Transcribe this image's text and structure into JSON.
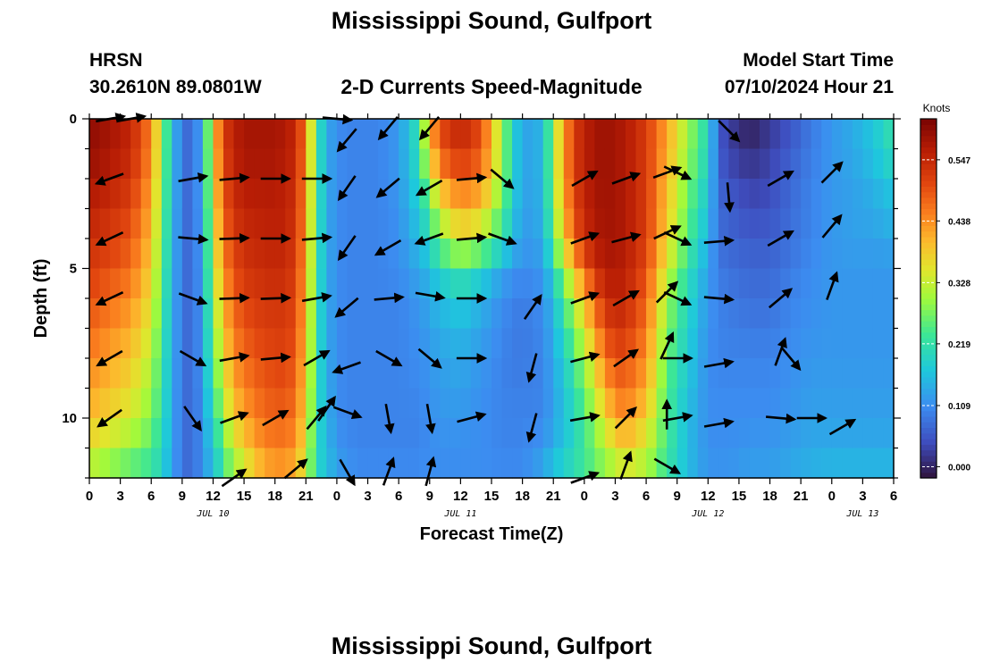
{
  "header": {
    "title": "Mississippi Sound, Gulfport",
    "station_id": "HRSN",
    "station_coords": "30.2610N  89.0801W",
    "chart_title": "2-D Currents Speed-Magnitude",
    "model_start_label": "Model Start Time",
    "model_start_value": "07/10/2024 Hour 21",
    "bottom_title": "Mississippi Sound, Gulfport"
  },
  "chart_data": {
    "type": "heatmap",
    "title": "2-D Currents Speed-Magnitude",
    "xlabel": "Forecast Time(Z)",
    "ylabel": "Depth (ft)",
    "x_unit": "hours since 2024-07-10 00Z",
    "xlim": [
      0,
      78
    ],
    "ylim": [
      0,
      12
    ],
    "y_inverted": true,
    "x_tick_values": [
      0,
      3,
      6,
      9,
      12,
      15,
      18,
      21,
      24,
      27,
      30,
      33,
      36,
      39,
      42,
      45,
      48,
      51,
      54,
      57,
      60,
      63,
      66,
      69,
      72,
      75,
      78
    ],
    "x_tick_labels": [
      "0",
      "3",
      "6",
      "9",
      "12",
      "15",
      "18",
      "21",
      "0",
      "3",
      "6",
      "9",
      "12",
      "15",
      "18",
      "21",
      "0",
      "3",
      "6",
      "9",
      "12",
      "15",
      "18",
      "21",
      "0",
      "3",
      "6"
    ],
    "y_tick_values": [
      0,
      5,
      10
    ],
    "y_tick_labels": [
      "0",
      "5",
      "10"
    ],
    "date_labels": [
      {
        "x": 12,
        "text": "JUL 10"
      },
      {
        "x": 36,
        "text": "JUL 11"
      },
      {
        "x": 60,
        "text": "JUL 12"
      },
      {
        "x": 75,
        "text": "JUL 13"
      }
    ],
    "colorbar": {
      "unit": "Knots",
      "min": -0.02,
      "max": 0.62,
      "ticks": [
        0.0,
        0.109,
        0.219,
        0.328,
        0.438,
        0.547
      ],
      "tick_labels": [
        "0.000",
        "0.109",
        "0.219",
        "0.328",
        "0.438",
        "0.547"
      ]
    },
    "speed_time_hours": [
      0,
      2,
      4,
      6,
      7,
      8,
      9,
      10,
      11,
      12,
      13,
      14,
      15,
      16,
      17,
      18,
      19,
      20,
      21,
      22,
      23,
      24,
      25,
      26,
      28,
      30,
      32,
      33,
      34,
      36,
      38,
      40,
      41,
      42,
      44,
      45,
      46,
      47,
      48,
      49,
      50,
      51,
      52,
      54,
      56,
      58,
      60,
      61,
      62,
      64,
      65,
      66,
      68,
      70,
      72,
      74,
      76,
      78
    ],
    "speed_depth_ft": [
      0,
      1,
      2,
      4,
      5,
      6,
      8,
      10,
      11,
      12
    ],
    "speed_depth_profiles": [
      [
        0.6,
        0.6,
        0.58,
        0.54,
        0.52,
        0.5,
        0.45,
        0.4,
        0.35,
        0.3
      ],
      [
        0.58,
        0.58,
        0.56,
        0.52,
        0.5,
        0.47,
        0.42,
        0.37,
        0.32,
        0.27
      ],
      [
        0.55,
        0.55,
        0.53,
        0.49,
        0.47,
        0.44,
        0.39,
        0.34,
        0.29,
        0.24
      ],
      [
        0.45,
        0.45,
        0.43,
        0.4,
        0.38,
        0.36,
        0.32,
        0.28,
        0.25,
        0.22
      ],
      [
        0.3,
        0.3,
        0.29,
        0.27,
        0.26,
        0.25,
        0.23,
        0.22,
        0.2,
        0.19
      ],
      [
        0.17,
        0.17,
        0.17,
        0.16,
        0.16,
        0.15,
        0.15,
        0.14,
        0.14,
        0.13
      ],
      [
        0.08,
        0.08,
        0.08,
        0.08,
        0.08,
        0.08,
        0.08,
        0.08,
        0.08,
        0.08
      ],
      [
        0.07,
        0.07,
        0.07,
        0.07,
        0.07,
        0.07,
        0.07,
        0.07,
        0.07,
        0.07
      ],
      [
        0.15,
        0.15,
        0.15,
        0.14,
        0.14,
        0.13,
        0.13,
        0.12,
        0.12,
        0.12
      ],
      [
        0.38,
        0.37,
        0.36,
        0.33,
        0.31,
        0.29,
        0.25,
        0.2,
        0.17,
        0.15
      ],
      [
        0.52,
        0.51,
        0.5,
        0.46,
        0.44,
        0.41,
        0.36,
        0.3,
        0.26,
        0.22
      ],
      [
        0.56,
        0.56,
        0.55,
        0.52,
        0.5,
        0.48,
        0.44,
        0.38,
        0.33,
        0.28
      ],
      [
        0.58,
        0.58,
        0.57,
        0.54,
        0.53,
        0.51,
        0.47,
        0.42,
        0.37,
        0.32
      ],
      [
        0.58,
        0.58,
        0.57,
        0.55,
        0.54,
        0.52,
        0.49,
        0.45,
        0.41,
        0.37
      ],
      [
        0.58,
        0.58,
        0.57,
        0.55,
        0.54,
        0.53,
        0.5,
        0.47,
        0.44,
        0.4
      ],
      [
        0.58,
        0.58,
        0.57,
        0.56,
        0.55,
        0.53,
        0.51,
        0.48,
        0.45,
        0.42
      ],
      [
        0.57,
        0.57,
        0.56,
        0.55,
        0.54,
        0.53,
        0.51,
        0.48,
        0.45,
        0.42
      ],
      [
        0.55,
        0.55,
        0.54,
        0.53,
        0.52,
        0.51,
        0.49,
        0.46,
        0.43,
        0.4
      ],
      [
        0.45,
        0.45,
        0.44,
        0.43,
        0.42,
        0.41,
        0.39,
        0.37,
        0.35,
        0.33
      ],
      [
        0.24,
        0.24,
        0.24,
        0.23,
        0.23,
        0.22,
        0.22,
        0.21,
        0.2,
        0.2
      ],
      [
        0.14,
        0.14,
        0.14,
        0.14,
        0.14,
        0.14,
        0.14,
        0.15,
        0.16,
        0.17
      ],
      [
        0.11,
        0.11,
        0.11,
        0.11,
        0.11,
        0.11,
        0.11,
        0.11,
        0.12,
        0.13
      ],
      [
        0.1,
        0.1,
        0.1,
        0.1,
        0.1,
        0.1,
        0.1,
        0.1,
        0.11,
        0.12
      ],
      [
        0.1,
        0.1,
        0.1,
        0.1,
        0.1,
        0.1,
        0.1,
        0.1,
        0.1,
        0.11
      ],
      [
        0.1,
        0.1,
        0.1,
        0.1,
        0.1,
        0.1,
        0.1,
        0.1,
        0.1,
        0.11
      ],
      [
        0.12,
        0.12,
        0.12,
        0.11,
        0.11,
        0.1,
        0.1,
        0.1,
        0.1,
        0.11
      ],
      [
        0.22,
        0.22,
        0.2,
        0.16,
        0.14,
        0.12,
        0.11,
        0.1,
        0.1,
        0.11
      ],
      [
        0.4,
        0.39,
        0.3,
        0.2,
        0.16,
        0.14,
        0.12,
        0.11,
        0.11,
        0.11
      ],
      [
        0.5,
        0.5,
        0.42,
        0.28,
        0.2,
        0.16,
        0.13,
        0.12,
        0.11,
        0.11
      ],
      [
        0.55,
        0.55,
        0.48,
        0.35,
        0.24,
        0.18,
        0.14,
        0.12,
        0.11,
        0.11
      ],
      [
        0.5,
        0.5,
        0.45,
        0.32,
        0.2,
        0.15,
        0.12,
        0.11,
        0.11,
        0.11
      ],
      [
        0.3,
        0.3,
        0.3,
        0.22,
        0.14,
        0.11,
        0.1,
        0.1,
        0.1,
        0.11
      ],
      [
        0.2,
        0.2,
        0.2,
        0.17,
        0.12,
        0.1,
        0.09,
        0.1,
        0.1,
        0.11
      ],
      [
        0.13,
        0.13,
        0.13,
        0.12,
        0.11,
        0.09,
        0.09,
        0.1,
        0.1,
        0.11
      ],
      [
        0.15,
        0.15,
        0.15,
        0.14,
        0.12,
        0.11,
        0.1,
        0.1,
        0.12,
        0.14
      ],
      [
        0.3,
        0.3,
        0.3,
        0.26,
        0.2,
        0.16,
        0.14,
        0.13,
        0.15,
        0.18
      ],
      [
        0.42,
        0.42,
        0.42,
        0.38,
        0.3,
        0.24,
        0.18,
        0.16,
        0.17,
        0.2
      ],
      [
        0.52,
        0.52,
        0.52,
        0.48,
        0.4,
        0.32,
        0.24,
        0.2,
        0.2,
        0.22
      ],
      [
        0.56,
        0.56,
        0.56,
        0.54,
        0.48,
        0.4,
        0.3,
        0.24,
        0.23,
        0.24
      ],
      [
        0.58,
        0.58,
        0.58,
        0.57,
        0.54,
        0.48,
        0.38,
        0.3,
        0.27,
        0.26
      ],
      [
        0.59,
        0.59,
        0.59,
        0.58,
        0.57,
        0.54,
        0.46,
        0.36,
        0.31,
        0.28
      ],
      [
        0.58,
        0.58,
        0.58,
        0.58,
        0.57,
        0.56,
        0.5,
        0.42,
        0.35,
        0.3
      ],
      [
        0.57,
        0.57,
        0.57,
        0.57,
        0.56,
        0.55,
        0.5,
        0.44,
        0.38,
        0.32
      ],
      [
        0.52,
        0.52,
        0.52,
        0.52,
        0.5,
        0.48,
        0.44,
        0.38,
        0.33,
        0.3
      ],
      [
        0.42,
        0.42,
        0.4,
        0.38,
        0.34,
        0.3,
        0.26,
        0.24,
        0.24,
        0.22
      ],
      [
        0.3,
        0.3,
        0.28,
        0.25,
        0.22,
        0.2,
        0.18,
        0.16,
        0.16,
        0.16
      ],
      [
        0.2,
        0.2,
        0.18,
        0.15,
        0.13,
        0.12,
        0.11,
        0.11,
        0.11,
        0.12
      ],
      [
        0.06,
        0.06,
        0.07,
        0.08,
        0.09,
        0.1,
        0.1,
        0.11,
        0.11,
        0.12
      ],
      [
        0.03,
        0.03,
        0.05,
        0.07,
        0.08,
        0.09,
        0.1,
        0.11,
        0.11,
        0.12
      ],
      [
        -0.01,
        0.01,
        0.03,
        0.06,
        0.07,
        0.08,
        0.1,
        0.11,
        0.12,
        0.13
      ],
      [
        0.0,
        0.02,
        0.03,
        0.06,
        0.07,
        0.08,
        0.1,
        0.11,
        0.12,
        0.13
      ],
      [
        0.02,
        0.03,
        0.04,
        0.06,
        0.07,
        0.08,
        0.1,
        0.11,
        0.12,
        0.13
      ],
      [
        0.05,
        0.06,
        0.07,
        0.08,
        0.09,
        0.1,
        0.11,
        0.12,
        0.13,
        0.14
      ],
      [
        0.09,
        0.09,
        0.1,
        0.1,
        0.11,
        0.11,
        0.12,
        0.13,
        0.14,
        0.15
      ],
      [
        0.12,
        0.12,
        0.12,
        0.12,
        0.12,
        0.12,
        0.12,
        0.13,
        0.14,
        0.16
      ],
      [
        0.14,
        0.14,
        0.13,
        0.13,
        0.12,
        0.12,
        0.12,
        0.13,
        0.14,
        0.16
      ],
      [
        0.17,
        0.17,
        0.15,
        0.13,
        0.12,
        0.12,
        0.12,
        0.13,
        0.14,
        0.16
      ],
      [
        0.22,
        0.22,
        0.18,
        0.14,
        0.12,
        0.12,
        0.12,
        0.13,
        0.14,
        0.16
      ]
    ],
    "vectors": [
      {
        "t": 2,
        "d": 0,
        "dir": 80
      },
      {
        "t": 4,
        "d": 0,
        "dir": 80
      },
      {
        "t": 2,
        "d": 2,
        "dir": 250
      },
      {
        "t": 10,
        "d": 2,
        "dir": 80
      },
      {
        "t": 14,
        "d": 2,
        "dir": 85
      },
      {
        "t": 18,
        "d": 2,
        "dir": 90
      },
      {
        "t": 22,
        "d": 2,
        "dir": 90
      },
      {
        "t": 2,
        "d": 4,
        "dir": 245
      },
      {
        "t": 10,
        "d": 4,
        "dir": 95
      },
      {
        "t": 14,
        "d": 4,
        "dir": 88
      },
      {
        "t": 18,
        "d": 4,
        "dir": 90
      },
      {
        "t": 22,
        "d": 4,
        "dir": 85
      },
      {
        "t": 2,
        "d": 6,
        "dir": 245
      },
      {
        "t": 10,
        "d": 6,
        "dir": 110
      },
      {
        "t": 14,
        "d": 6,
        "dir": 88
      },
      {
        "t": 18,
        "d": 6,
        "dir": 88
      },
      {
        "t": 22,
        "d": 6,
        "dir": 80
      },
      {
        "t": 2,
        "d": 8,
        "dir": 240
      },
      {
        "t": 10,
        "d": 8,
        "dir": 120
      },
      {
        "t": 14,
        "d": 8,
        "dir": 80
      },
      {
        "t": 18,
        "d": 8,
        "dir": 85
      },
      {
        "t": 22,
        "d": 8,
        "dir": 60
      },
      {
        "t": 2,
        "d": 10,
        "dir": 235
      },
      {
        "t": 10,
        "d": 10,
        "dir": 145
      },
      {
        "t": 14,
        "d": 10,
        "dir": 70
      },
      {
        "t": 18,
        "d": 10,
        "dir": 60
      },
      {
        "t": 22,
        "d": 10,
        "dir": 40
      },
      {
        "t": 14,
        "d": 12,
        "dir": 55
      },
      {
        "t": 20,
        "d": 11.7,
        "dir": 50
      },
      {
        "t": 24,
        "d": 0,
        "dir": 95
      },
      {
        "t": 25,
        "d": 0.7,
        "dir": 220
      },
      {
        "t": 29,
        "d": 0.3,
        "dir": 220
      },
      {
        "t": 33,
        "d": 0.3,
        "dir": 220
      },
      {
        "t": 25,
        "d": 2.3,
        "dir": 215
      },
      {
        "t": 29,
        "d": 2.3,
        "dir": 230
      },
      {
        "t": 33,
        "d": 2.3,
        "dir": 240
      },
      {
        "t": 37,
        "d": 2.0,
        "dir": 85
      },
      {
        "t": 25,
        "d": 4.3,
        "dir": 215
      },
      {
        "t": 29,
        "d": 4.3,
        "dir": 240
      },
      {
        "t": 33,
        "d": 4.0,
        "dir": 250
      },
      {
        "t": 37,
        "d": 4.0,
        "dir": 85
      },
      {
        "t": 25,
        "d": 6.3,
        "dir": 230
      },
      {
        "t": 29,
        "d": 6.0,
        "dir": 85
      },
      {
        "t": 33,
        "d": 5.9,
        "dir": 100
      },
      {
        "t": 37,
        "d": 6.0,
        "dir": 90
      },
      {
        "t": 25,
        "d": 8.3,
        "dir": 250
      },
      {
        "t": 29,
        "d": 8.0,
        "dir": 120
      },
      {
        "t": 33,
        "d": 8.0,
        "dir": 130
      },
      {
        "t": 37,
        "d": 8.0,
        "dir": 90
      },
      {
        "t": 25,
        "d": 9.8,
        "dir": 110
      },
      {
        "t": 29,
        "d": 10.0,
        "dir": 170
      },
      {
        "t": 33,
        "d": 10.0,
        "dir": 170
      },
      {
        "t": 37,
        "d": 10.0,
        "dir": 75
      },
      {
        "t": 25,
        "d": 11.8,
        "dir": 150
      },
      {
        "t": 29,
        "d": 11.8,
        "dir": 20
      },
      {
        "t": 33,
        "d": 11.8,
        "dir": 15
      },
      {
        "t": 23,
        "d": 9.7,
        "dir": 35
      },
      {
        "t": 40,
        "d": 2.0,
        "dir": 130
      },
      {
        "t": 40,
        "d": 4.0,
        "dir": 110
      },
      {
        "t": 43,
        "d": 6.3,
        "dir": 35
      },
      {
        "t": 43,
        "d": 8.3,
        "dir": 195
      },
      {
        "t": 43,
        "d": 10.3,
        "dir": 195
      },
      {
        "t": 48,
        "d": 2.0,
        "dir": 60
      },
      {
        "t": 48,
        "d": 4.0,
        "dir": 70
      },
      {
        "t": 48,
        "d": 6.0,
        "dir": 70
      },
      {
        "t": 48,
        "d": 8.0,
        "dir": 75
      },
      {
        "t": 48,
        "d": 10.0,
        "dir": 80
      },
      {
        "t": 48,
        "d": 12.0,
        "dir": 70
      },
      {
        "t": 52,
        "d": 2.0,
        "dir": 70
      },
      {
        "t": 52,
        "d": 4.0,
        "dir": 75
      },
      {
        "t": 52,
        "d": 6.0,
        "dir": 60
      },
      {
        "t": 52,
        "d": 8.0,
        "dir": 55
      },
      {
        "t": 52,
        "d": 10.0,
        "dir": 45
      },
      {
        "t": 52,
        "d": 11.6,
        "dir": 20
      },
      {
        "t": 56,
        "d": 1.8,
        "dir": 70
      },
      {
        "t": 56,
        "d": 3.8,
        "dir": 65
      },
      {
        "t": 56,
        "d": 5.8,
        "dir": 45
      },
      {
        "t": 56,
        "d": 7.6,
        "dir": 25
      },
      {
        "t": 56,
        "d": 9.9,
        "dir": 0
      },
      {
        "t": 56,
        "d": 11.6,
        "dir": 120
      },
      {
        "t": 57,
        "d": 1.8,
        "dir": 115
      },
      {
        "t": 57,
        "d": 4.0,
        "dir": 115
      },
      {
        "t": 57,
        "d": 6.0,
        "dir": 115
      },
      {
        "t": 57,
        "d": 8.0,
        "dir": 90
      },
      {
        "t": 57,
        "d": 10.0,
        "dir": 80
      },
      {
        "t": 62,
        "d": 0.4,
        "dir": 135
      },
      {
        "t": 62,
        "d": 2.6,
        "dir": 175
      },
      {
        "t": 61,
        "d": 4.1,
        "dir": 85
      },
      {
        "t": 61,
        "d": 6.0,
        "dir": 95
      },
      {
        "t": 61,
        "d": 8.2,
        "dir": 80
      },
      {
        "t": 61,
        "d": 10.2,
        "dir": 80
      },
      {
        "t": 67,
        "d": 2.0,
        "dir": 60
      },
      {
        "t": 67,
        "d": 4.0,
        "dir": 60
      },
      {
        "t": 67,
        "d": 6.0,
        "dir": 50
      },
      {
        "t": 67,
        "d": 7.8,
        "dir": 20
      },
      {
        "t": 68,
        "d": 8.0,
        "dir": 140
      },
      {
        "t": 67,
        "d": 10.0,
        "dir": 95
      },
      {
        "t": 72,
        "d": 1.8,
        "dir": 45
      },
      {
        "t": 72,
        "d": 3.6,
        "dir": 40
      },
      {
        "t": 72,
        "d": 5.6,
        "dir": 20
      },
      {
        "t": 70,
        "d": 10.0,
        "dir": 90
      },
      {
        "t": 73,
        "d": 10.3,
        "dir": 60
      }
    ]
  },
  "colors": {
    "background": "#ffffff",
    "axis": "#000000",
    "vector": "#000000"
  }
}
